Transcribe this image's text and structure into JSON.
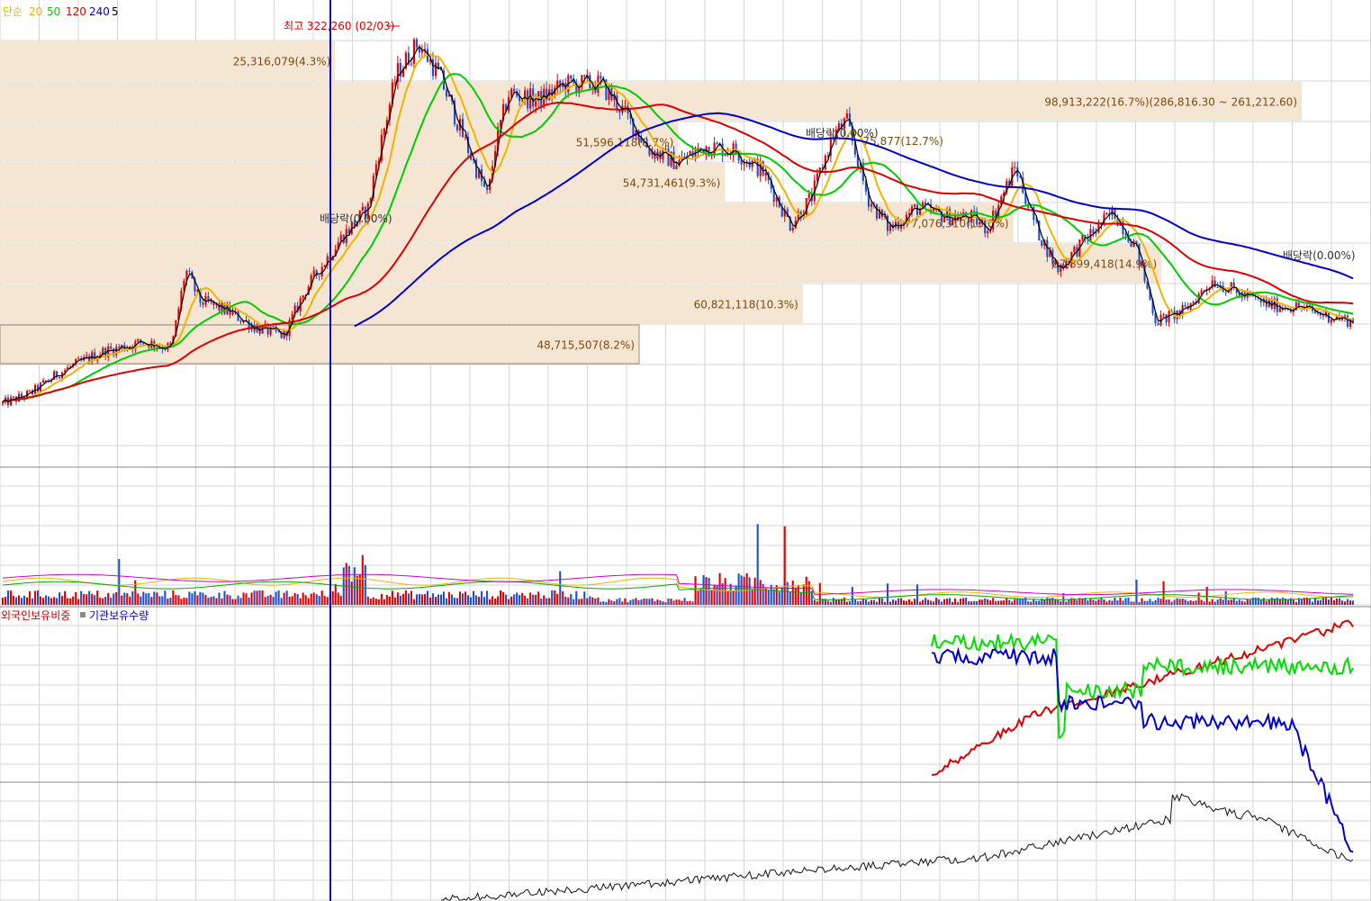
{
  "legend": {
    "ma_type": "단순",
    "periods": [
      {
        "label": "20",
        "color": "#f0b400"
      },
      {
        "label": "50",
        "color": "#00cc00"
      },
      {
        "label": "120",
        "color": "#dd0000"
      },
      {
        "label": "240",
        "color": "#0000cc"
      },
      {
        "label": "5",
        "color": "#000000"
      }
    ]
  },
  "colors": {
    "up": "#e00000",
    "down": "#1f4fd0",
    "ma20": "#f0b400",
    "ma50": "#00cc00",
    "ma120": "#dd0000",
    "ma240": "#0000cc",
    "ma5": "#000000",
    "cursor": "#0000dd",
    "volume_profile": "#f5e6d3",
    "grid": "#d6d6d6"
  },
  "annotations": {
    "high_label": "최고 322,260 (02/03)",
    "dividends": [
      "배당락(0.00%)",
      "배당락(0.00%)",
      "배당락(0.00%)"
    ]
  },
  "lower_legend": {
    "foreign": "외국인보유비중",
    "institution": "기관보유수량"
  },
  "chart_data": [
    {
      "type": "candlestick",
      "price_range": [
        140000,
        330000
      ],
      "high": 322260,
      "high_date": "02/03",
      "volume_profile": [
        {
          "label": "25,316,079(4.3%)",
          "pct": 4.3
        },
        {
          "label": "98,913,222(16.7%)(286,816.30 ~ 261,212.60)",
          "pct": 16.7
        },
        {
          "label": "51,596,118(8.7%)",
          "pct": 8.7
        },
        {
          "label": "54,731,461(9.3%)",
          "pct": 9.3
        },
        {
          "label": "77,076,310(13.0%)",
          "pct": 13.0
        },
        {
          "label": "87,899,418(14.9%)",
          "pct": 14.9
        },
        {
          "label": "60,821,118(10.3%)",
          "pct": 10.3
        },
        {
          "label": "48,715,507(8.2%)",
          "pct": 8.2
        }
      ],
      "overlap_label": "75,877(12.7%)",
      "moving_averages": [
        {
          "name": "20",
          "period": 20
        },
        {
          "name": "50",
          "period": 50
        },
        {
          "name": "120",
          "period": 120
        },
        {
          "name": "240",
          "period": 240
        },
        {
          "name": "5",
          "period": 5
        }
      ],
      "grid": true
    },
    {
      "type": "bar",
      "description_free": true
    },
    {
      "type": "line"
    },
    {
      "type": "line"
    }
  ]
}
